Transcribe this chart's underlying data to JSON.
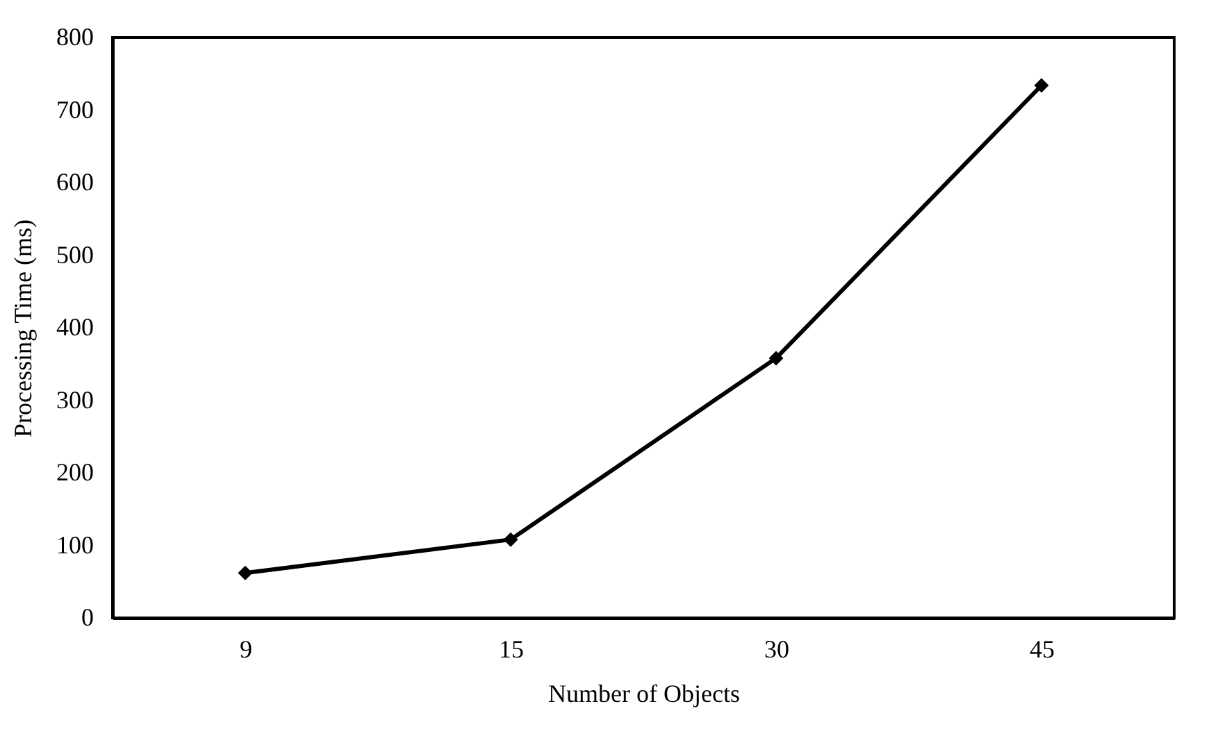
{
  "chart_data": {
    "type": "line",
    "xlabel": "Number of Objects",
    "ylabel": "Processing Time (ms)",
    "categories": [
      "9",
      "15",
      "30",
      "45"
    ],
    "series": [
      {
        "color": "#000000",
        "values": [
          62,
          108,
          358,
          734
        ]
      }
    ],
    "ylim": [
      0,
      800
    ],
    "yticks": [
      0,
      100,
      200,
      300,
      400,
      500,
      600,
      700,
      800
    ],
    "marker": "diamond",
    "line_style": "solid"
  }
}
